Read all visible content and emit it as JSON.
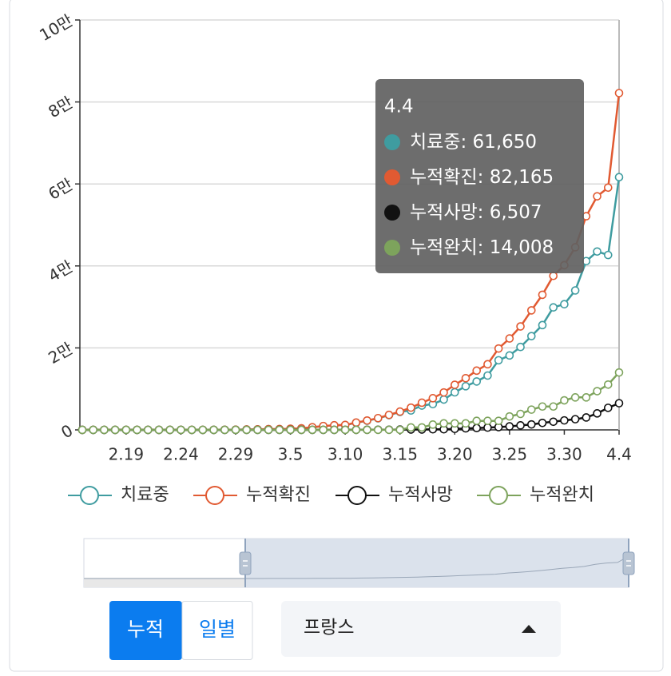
{
  "chart_data": {
    "type": "line",
    "categories": [
      null,
      null,
      null,
      null,
      "2.19",
      null,
      null,
      null,
      null,
      "2.24",
      null,
      null,
      null,
      null,
      "2.29",
      null,
      null,
      null,
      null,
      "3.5",
      null,
      null,
      null,
      null,
      "3.10",
      null,
      null,
      null,
      null,
      "3.15",
      null,
      null,
      null,
      null,
      "3.20",
      null,
      null,
      null,
      null,
      "3.25",
      null,
      null,
      null,
      null,
      "3.30",
      null,
      null,
      null,
      null,
      "4.4"
    ],
    "ylim": [
      0,
      100000
    ],
    "yticks": [
      0,
      {
        "value": 20000,
        "label": "2만"
      },
      {
        "value": 40000,
        "label": "4만"
      },
      {
        "value": 60000,
        "label": "6만"
      },
      {
        "value": 80000,
        "label": "8만"
      },
      {
        "value": 100000,
        "label": "10만"
      }
    ],
    "grid": true,
    "legend": "bottom",
    "series": [
      {
        "name": "치료중",
        "color": "#3f9ca0",
        "values": [
          7,
          7,
          7,
          7,
          7,
          7,
          7,
          7,
          7,
          7,
          0,
          2,
          6,
          25,
          43,
          86,
          116,
          177,
          189,
          269,
          361,
          635,
          928,
          1103,
          1178,
          1753,
          2236,
          2816,
          3601,
          4378,
          4730,
          5940,
          6287,
          7399,
          9164,
          10653,
          11809,
          13256,
          16982,
          18163,
          20233,
          22876,
          25568,
          29880,
          30658,
          34017,
          41177,
          43513,
          42665,
          61650
        ]
      },
      {
        "name": "누적확진",
        "color": "#e15a32",
        "values": [
          11,
          12,
          12,
          12,
          12,
          12,
          12,
          12,
          12,
          12,
          12,
          14,
          18,
          38,
          57,
          100,
          130,
          191,
          204,
          285,
          377,
          653,
          949,
          1126,
          1209,
          1784,
          2281,
          2876,
          3661,
          4469,
          5423,
          6633,
          7730,
          9134,
          10995,
          12612,
          14459,
          16018,
          19856,
          22304,
          25233,
          29155,
          32964,
          37575,
          40174,
          44550,
          52128,
          56989,
          59105,
          82165
        ]
      },
      {
        "name": "누적사망",
        "color": "#111111",
        "values": [
          0,
          1,
          1,
          1,
          1,
          1,
          1,
          1,
          1,
          1,
          1,
          1,
          1,
          2,
          2,
          2,
          2,
          2,
          3,
          4,
          4,
          6,
          9,
          11,
          19,
          19,
          33,
          48,
          48,
          79,
          91,
          91,
          148,
          148,
          244,
          372,
          450,
          562,
          674,
          860,
          1100,
          1331,
          1696,
          1995,
          2314,
          2606,
          3024,
          4032,
          5387,
          6507
        ]
      },
      {
        "name": "누적완치",
        "color": "#7da35c",
        "values": [
          4,
          4,
          4,
          4,
          4,
          4,
          4,
          4,
          4,
          4,
          11,
          11,
          11,
          11,
          12,
          12,
          12,
          12,
          12,
          12,
          12,
          12,
          12,
          12,
          12,
          12,
          12,
          12,
          12,
          12,
          602,
          602,
          1295,
          1587,
          1587,
          1587,
          2200,
          2200,
          2200,
          3281,
          3900,
          4948,
          5700,
          5700,
          7202,
          7927,
          7927,
          9444,
          11053,
          14008
        ]
      }
    ],
    "tooltip": {
      "values": [
        "61,650",
        "82,165",
        "6,507",
        "14,008"
      ]
    }
  },
  "controls": {
    "buttons": [
      "누적",
      "일별"
    ],
    "select": "프랑스"
  }
}
